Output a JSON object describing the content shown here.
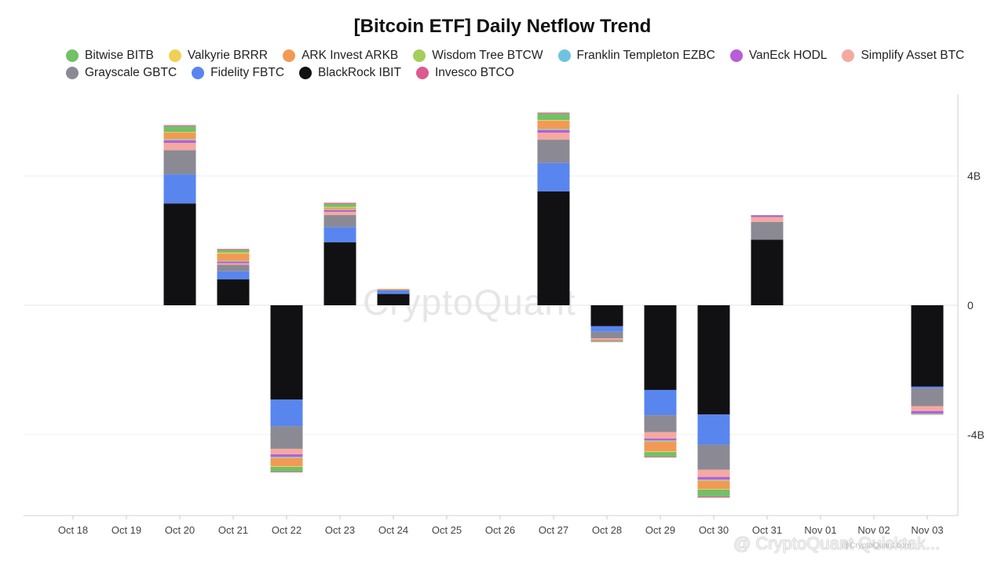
{
  "chart_data": {
    "type": "bar",
    "stacked": true,
    "title": "[Bitcoin ETF] Daily Netflow Trend",
    "categories": [
      "Oct 18",
      "Oct 19",
      "Oct 20",
      "Oct 21",
      "Oct 22",
      "Oct 23",
      "Oct 24",
      "Oct 25",
      "Oct 26",
      "Oct 27",
      "Oct 28",
      "Oct 29",
      "Oct 30",
      "Oct 31",
      "Nov 01",
      "Nov 02",
      "Nov 03"
    ],
    "y_unit": "B",
    "ylim": [
      -6.5,
      6.5
    ],
    "yticks": [
      {
        "value": 4,
        "label": "4B"
      },
      {
        "value": 0,
        "label": "0"
      },
      {
        "value": -4,
        "label": "-4B"
      }
    ],
    "legend_position": "top",
    "series": [
      {
        "name": "BlackRock IBIT",
        "color": "#111114",
        "values": [
          0,
          0,
          3.15,
          0.8,
          -2.92,
          1.95,
          0.35,
          0,
          0,
          3.52,
          -0.65,
          -2.62,
          -3.38,
          2.03,
          0,
          0,
          -2.52
        ]
      },
      {
        "name": "Fidelity FBTC",
        "color": "#5985ef",
        "values": [
          0,
          0,
          0.9,
          0.25,
          -0.82,
          0.47,
          0.12,
          0,
          0,
          0.88,
          -0.17,
          -0.78,
          -0.93,
          0,
          0,
          0,
          -0.05
        ]
      },
      {
        "name": "Grayscale GBTC",
        "color": "#8b8a94",
        "values": [
          0,
          0,
          0.75,
          0.2,
          -0.7,
          0.37,
          0,
          0,
          0,
          0.72,
          -0.2,
          -0.52,
          -0.78,
          0.55,
          0,
          0,
          -0.55
        ]
      },
      {
        "name": "Simplify Asset BTC",
        "color": "#f4a9a1",
        "values": [
          0,
          0,
          0.22,
          0.05,
          -0.17,
          0.1,
          0,
          0,
          0,
          0.22,
          -0.05,
          -0.2,
          -0.22,
          0.15,
          0,
          0,
          -0.15
        ]
      },
      {
        "name": "VanEck HODL",
        "color": "#b95cd8",
        "values": [
          0,
          0,
          0.08,
          0.05,
          -0.08,
          0.05,
          0,
          0,
          0,
          0.08,
          -0.02,
          -0.06,
          -0.08,
          0.05,
          0,
          0,
          -0.08
        ]
      },
      {
        "name": "Franklin Templeton EZBC",
        "color": "#6ec4df",
        "values": [
          0,
          0,
          0.02,
          0.01,
          -0.02,
          0.01,
          0,
          0,
          0,
          0.02,
          0,
          -0.02,
          -0.02,
          0.01,
          0,
          0,
          -0.02
        ]
      },
      {
        "name": "Wisdom Tree BTCW",
        "color": "#a5cd5b",
        "values": [
          0,
          0,
          0.02,
          0.02,
          -0.02,
          0.02,
          0,
          0,
          0,
          0.02,
          0,
          -0.02,
          -0.02,
          0,
          0,
          0,
          -0.02
        ]
      },
      {
        "name": "ARK Invest ARKB",
        "color": "#f29a55",
        "values": [
          0,
          0,
          0.2,
          0.22,
          -0.25,
          0.05,
          0.03,
          0,
          0,
          0.25,
          -0.02,
          -0.3,
          -0.25,
          0,
          0,
          0,
          0
        ]
      },
      {
        "name": "Valkyrie BRRR",
        "color": "#f0d057",
        "values": [
          0,
          0,
          0.02,
          0.03,
          -0.02,
          0.02,
          0.01,
          0,
          0,
          0.02,
          0,
          -0.02,
          -0.02,
          0,
          0,
          0,
          0
        ]
      },
      {
        "name": "Bitwise BITB",
        "color": "#72c067",
        "values": [
          0,
          0,
          0.18,
          0.08,
          -0.15,
          0.1,
          0,
          0,
          0,
          0.2,
          -0.03,
          -0.15,
          -0.22,
          0,
          0,
          0,
          0
        ]
      },
      {
        "name": "Invesco BTCO",
        "color": "#dc5a8e",
        "values": [
          0,
          0,
          0.03,
          0.03,
          -0.02,
          0.03,
          0,
          0,
          0,
          0.03,
          0,
          -0.02,
          -0.03,
          0,
          0,
          0,
          0
        ]
      }
    ]
  },
  "legend": {
    "rows": [
      [
        {
          "label": "Bitwise BITB",
          "color": "#72c067"
        },
        {
          "label": "Valkyrie BRRR",
          "color": "#f0d057"
        },
        {
          "label": "ARK Invest ARKB",
          "color": "#f29a55"
        },
        {
          "label": "Wisdom Tree BTCW",
          "color": "#a5cd5b"
        },
        {
          "label": "Franklin Templeton EZBC",
          "color": "#6ec4df"
        },
        {
          "label": "VanEck HODL",
          "color": "#b95cd8"
        },
        {
          "label": "Simplify Asset BTC",
          "color": "#f4a9a1"
        }
      ],
      [
        {
          "label": "Grayscale GBTC",
          "color": "#8b8a94"
        },
        {
          "label": "Fidelity FBTC",
          "color": "#5985ef"
        },
        {
          "label": "BlackRock IBIT",
          "color": "#111114"
        },
        {
          "label": "Invesco BTCO",
          "color": "#dc5a8e"
        }
      ]
    ]
  },
  "watermark": "CryptoQuant",
  "source_text": "@CryptoQuant.com",
  "footer_mark": "@ CryptoQuant Quicktak..."
}
